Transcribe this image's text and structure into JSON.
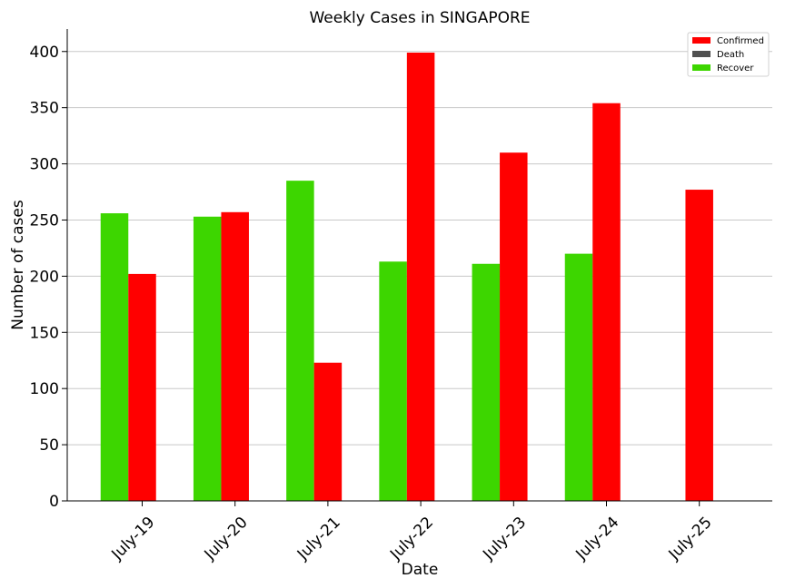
{
  "colors": {
    "confirmed": "#ff0000",
    "death": "#505050",
    "recover": "#3dd600",
    "grid": "#c8c8c8",
    "axis": "#000000"
  },
  "chart_data": {
    "type": "bar",
    "title": "Weekly Cases in SINGAPORE",
    "xlabel": "Date",
    "ylabel": "Number of cases",
    "categories": [
      "July-19",
      "July-20",
      "July-21",
      "July-22",
      "July-23",
      "July-24",
      "July-25"
    ],
    "ylim": [
      0,
      420
    ],
    "yticks": [
      0,
      50,
      100,
      150,
      200,
      250,
      300,
      350,
      400
    ],
    "grid": "horizontal",
    "legend_position": "top-right",
    "series": [
      {
        "name": "Confirmed",
        "color": "#ff0000",
        "values": [
          202,
          257,
          123,
          399,
          310,
          354,
          277
        ]
      },
      {
        "name": "Death",
        "color": "#505050",
        "values": [
          0,
          0,
          0,
          0,
          0,
          0,
          0
        ]
      },
      {
        "name": "Recover",
        "color": "#3dd600",
        "values": [
          256,
          253,
          285,
          213,
          211,
          220,
          0
        ]
      }
    ]
  }
}
